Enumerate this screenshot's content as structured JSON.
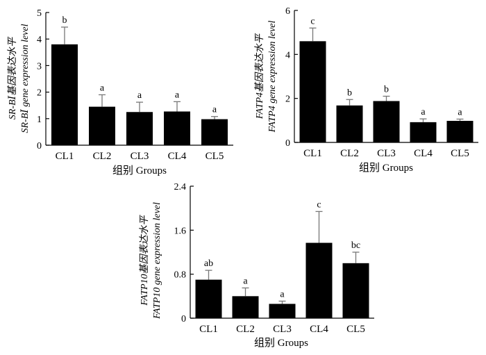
{
  "chart_data": [
    {
      "type": "bar",
      "categories": [
        "CL1",
        "CL2",
        "CL3",
        "CL4",
        "CL5"
      ],
      "values": [
        3.8,
        1.45,
        1.25,
        1.27,
        0.98
      ],
      "errors": [
        0.65,
        0.45,
        0.37,
        0.37,
        0.1
      ],
      "letters": [
        "b",
        "a",
        "a",
        "a",
        "a"
      ],
      "ylim": [
        0,
        5
      ],
      "yticks": [
        0,
        1,
        2,
        3,
        4,
        5
      ],
      "ytick_labels": [
        "0",
        "1",
        "2",
        "3",
        "4",
        "5"
      ],
      "xlabel": "组别  Groups",
      "ylabel_cn": "SR-BⅠ基因表达水平",
      "ylabel_en": "SR-BⅠ gene expression level",
      "grid": false
    },
    {
      "type": "bar",
      "categories": [
        "CL1",
        "CL2",
        "CL3",
        "CL4",
        "CL5"
      ],
      "values": [
        4.6,
        1.68,
        1.88,
        0.92,
        0.98
      ],
      "errors": [
        0.6,
        0.27,
        0.22,
        0.15,
        0.08
      ],
      "letters": [
        "c",
        "b",
        "b",
        "a",
        "a"
      ],
      "ylim": [
        0,
        6
      ],
      "yticks": [
        0,
        2,
        4,
        6
      ],
      "ytick_labels": [
        "0",
        "2",
        "4",
        "6"
      ],
      "xlabel": "组别  Groups",
      "ylabel_cn": "FATP4基因表达水平",
      "ylabel_en": "FATP4 gene expression level",
      "grid": false
    },
    {
      "type": "bar",
      "categories": [
        "CL1",
        "CL2",
        "CL3",
        "CL4",
        "CL5"
      ],
      "values": [
        0.7,
        0.4,
        0.26,
        1.37,
        1.0
      ],
      "errors": [
        0.17,
        0.15,
        0.05,
        0.57,
        0.2
      ],
      "letters": [
        "ab",
        "a",
        "a",
        "c",
        "bc"
      ],
      "ylim": [
        0,
        2.4
      ],
      "yticks": [
        0,
        0.8,
        1.6,
        2.4
      ],
      "ytick_labels": [
        "0",
        "0.8",
        "1.6",
        "2.4"
      ],
      "xlabel": "组别  Groups",
      "ylabel_cn": "FATP10基因表达水平",
      "ylabel_en": "FATP10 gene expression level",
      "grid": false
    }
  ]
}
